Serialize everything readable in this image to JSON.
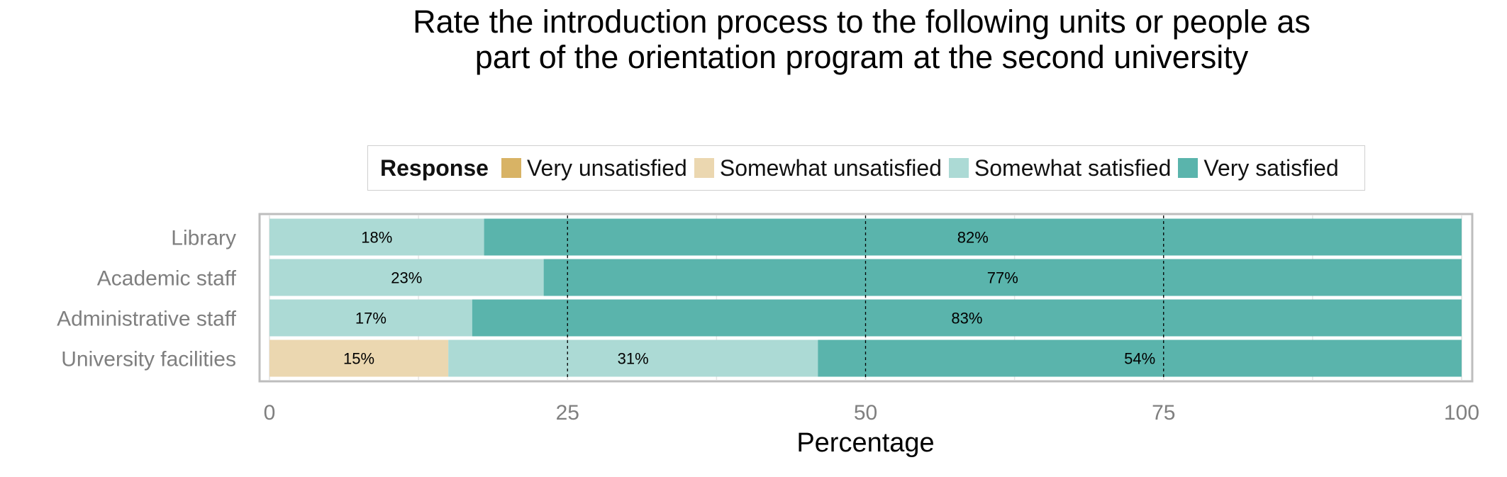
{
  "chart_data": {
    "type": "bar",
    "orientation": "horizontal-stacked",
    "title": "Rate the introduction process to the following units or people as part of the orientation program at the second university",
    "xlabel": "Percentage",
    "ylabel": "",
    "xlim": [
      0,
      100
    ],
    "xticks": [
      "0",
      "25",
      "50",
      "75",
      "100"
    ],
    "grid": true,
    "legend_title": "Response",
    "legend_position": "top",
    "categories": [
      "Library",
      "Academic staff",
      "Administrative staff",
      "University facilities"
    ],
    "series": [
      {
        "name": "Very unsatisfied",
        "color": "#d8b365",
        "values": [
          0,
          0,
          0,
          0
        ],
        "labels": [
          "",
          "",
          "",
          ""
        ]
      },
      {
        "name": "Somewhat unsatisfied",
        "color": "#ebd7b0",
        "values": [
          0,
          0,
          0,
          15
        ],
        "labels": [
          "",
          "",
          "",
          "15%"
        ]
      },
      {
        "name": "Somewhat satisfied",
        "color": "#acdad5",
        "values": [
          18,
          23,
          17,
          31
        ],
        "labels": [
          "18%",
          "23%",
          "17%",
          "31%"
        ]
      },
      {
        "name": "Very satisfied",
        "color": "#5ab4ac",
        "values": [
          82,
          77,
          83,
          54
        ],
        "labels": [
          "82%",
          "77%",
          "83%",
          "54%"
        ]
      }
    ]
  }
}
